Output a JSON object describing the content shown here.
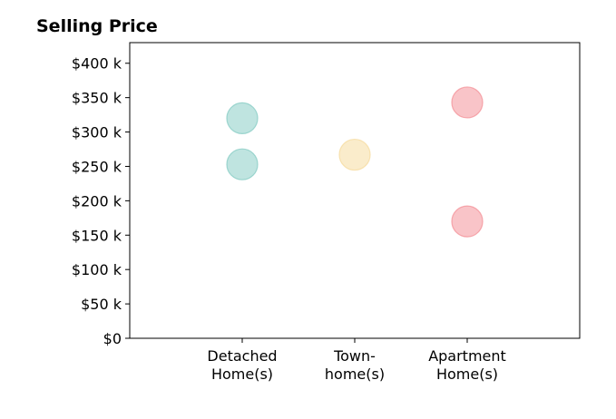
{
  "chart_data": {
    "type": "scatter",
    "title": "Selling Price",
    "xlabel": "",
    "ylabel": "",
    "categories": [
      [
        "Detached",
        "Home(s)"
      ],
      [
        "Town-",
        "home(s)"
      ],
      [
        "Apartment",
        "Home(s)"
      ]
    ],
    "ylim": [
      0,
      430000
    ],
    "yticks": [
      0,
      50000,
      100000,
      150000,
      200000,
      250000,
      300000,
      350000,
      400000
    ],
    "ytick_labels": [
      "$0",
      "$50 k",
      "$100 k",
      "$150 k",
      "$200 k",
      "$250 k",
      "$300 k",
      "$350 k",
      "$400 k"
    ],
    "grid": false,
    "points": [
      {
        "category_index": 0,
        "y": 320000
      },
      {
        "category_index": 0,
        "y": 253000
      },
      {
        "category_index": 1,
        "y": 267000
      },
      {
        "category_index": 2,
        "y": 343000
      },
      {
        "category_index": 2,
        "y": 170000
      }
    ],
    "colors": [
      "#7fc9c1",
      "#f5d998",
      "#f48a92"
    ]
  }
}
